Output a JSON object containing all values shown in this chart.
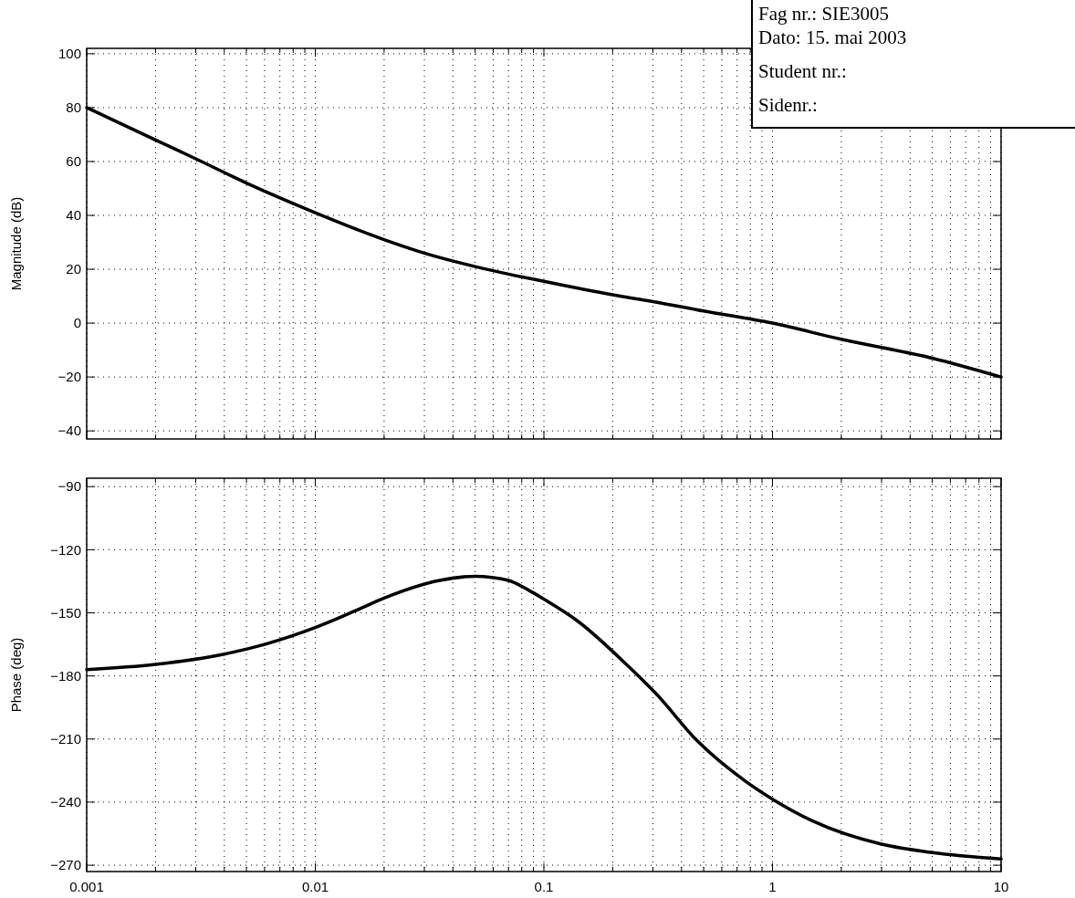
{
  "chart_data": [
    {
      "type": "line",
      "ylabel": "Magnitude (dB)",
      "log": "x",
      "grid": true,
      "tick_labels": "y",
      "line_style": "solid",
      "xlim": [
        0.001,
        10
      ],
      "ylim": [
        -43,
        102
      ],
      "xticks": [
        0.001,
        {
          "value": 0.002,
          "label": null
        },
        {
          "value": 0.003,
          "label": null
        },
        {
          "value": 0.004,
          "label": null
        },
        {
          "value": 0.005,
          "label": null
        },
        {
          "value": 0.006,
          "label": null
        },
        {
          "value": 0.007,
          "label": null
        },
        {
          "value": 0.008,
          "label": null
        },
        {
          "value": 0.009,
          "label": null
        },
        0.01,
        {
          "value": 0.02,
          "label": null
        },
        {
          "value": 0.03,
          "label": null
        },
        {
          "value": 0.04,
          "label": null
        },
        {
          "value": 0.05,
          "label": null
        },
        {
          "value": 0.06,
          "label": null
        },
        {
          "value": 0.07,
          "label": null
        },
        {
          "value": 0.08,
          "label": null
        },
        {
          "value": 0.09,
          "label": null
        },
        0.1,
        {
          "value": 0.2,
          "label": null
        },
        {
          "value": 0.3,
          "label": null
        },
        {
          "value": 0.4,
          "label": null
        },
        {
          "value": 0.5,
          "label": null
        },
        {
          "value": 0.6,
          "label": null
        },
        {
          "value": 0.7,
          "label": null
        },
        {
          "value": 0.8,
          "label": null
        },
        {
          "value": 0.9,
          "label": null
        },
        1,
        {
          "value": 2,
          "label": null
        },
        {
          "value": 3,
          "label": null
        },
        {
          "value": 4,
          "label": null
        },
        {
          "value": 5,
          "label": null
        },
        {
          "value": 6,
          "label": null
        },
        {
          "value": 7,
          "label": null
        },
        {
          "value": 8,
          "label": null
        },
        {
          "value": 9,
          "label": null
        },
        10
      ],
      "yticks": [
        -40,
        -20,
        0,
        20,
        40,
        60,
        80,
        100
      ],
      "annotations": [
        "Fag nr.: SIE3005",
        "Dato: 15. mai 2003",
        "Student nr.:",
        "Sidenr.:"
      ],
      "x": [
        0.001,
        0.002,
        0.003,
        0.005,
        0.01,
        0.02,
        0.03,
        0.05,
        0.1,
        0.2,
        0.3,
        0.5,
        1,
        2,
        5,
        10
      ],
      "series": [
        {
          "color": "#000000",
          "values": [
            80,
            68,
            61,
            52,
            41,
            31,
            26,
            21,
            15.5,
            10.5,
            8,
            4.5,
            0,
            -6,
            -13,
            -20
          ]
        }
      ]
    },
    {
      "type": "line",
      "ylabel": "Phase (deg)",
      "log": "x",
      "grid": true,
      "line_style": "solid",
      "xlim": [
        0.001,
        10
      ],
      "ylim": [
        -273,
        -86
      ],
      "xticks": [
        0.001,
        {
          "value": 0.002,
          "label": null
        },
        {
          "value": 0.003,
          "label": null
        },
        {
          "value": 0.004,
          "label": null
        },
        {
          "value": 0.005,
          "label": null
        },
        {
          "value": 0.006,
          "label": null
        },
        {
          "value": 0.007,
          "label": null
        },
        {
          "value": 0.008,
          "label": null
        },
        {
          "value": 0.009,
          "label": null
        },
        0.01,
        {
          "value": 0.02,
          "label": null
        },
        {
          "value": 0.03,
          "label": null
        },
        {
          "value": 0.04,
          "label": null
        },
        {
          "value": 0.05,
          "label": null
        },
        {
          "value": 0.06,
          "label": null
        },
        {
          "value": 0.07,
          "label": null
        },
        {
          "value": 0.08,
          "label": null
        },
        {
          "value": 0.09,
          "label": null
        },
        0.1,
        {
          "value": 0.2,
          "label": null
        },
        {
          "value": 0.3,
          "label": null
        },
        {
          "value": 0.4,
          "label": null
        },
        {
          "value": 0.5,
          "label": null
        },
        {
          "value": 0.6,
          "label": null
        },
        {
          "value": 0.7,
          "label": null
        },
        {
          "value": 0.8,
          "label": null
        },
        {
          "value": 0.9,
          "label": null
        },
        1,
        {
          "value": 2,
          "label": null
        },
        {
          "value": 3,
          "label": null
        },
        {
          "value": 4,
          "label": null
        },
        {
          "value": 5,
          "label": null
        },
        {
          "value": 6,
          "label": null
        },
        {
          "value": 7,
          "label": null
        },
        {
          "value": 8,
          "label": null
        },
        {
          "value": 9,
          "label": null
        },
        10
      ],
      "yticks": [
        {
          "value": -270,
          "label": "−270"
        },
        {
          "value": -240,
          "label": "−240"
        },
        {
          "value": -210,
          "label": "−210"
        },
        {
          "value": -180,
          "label": "−180"
        },
        {
          "value": -150,
          "label": "−150"
        },
        {
          "value": -120,
          "label": "−120"
        },
        {
          "value": -90,
          "label": "−90"
        }
      ],
      "x": [
        0.001,
        0.002,
        0.004,
        0.006,
        0.01,
        0.015,
        0.02,
        0.035,
        0.05,
        0.07,
        0.085,
        0.1,
        0.14,
        0.23,
        0.31,
        0.47,
        0.76,
        1,
        1.5,
        3,
        5,
        10
      ],
      "series": [
        {
          "color": "#000000",
          "values": [
            -177,
            -174.5,
            -169.6,
            -165,
            -157,
            -149,
            -143,
            -134.6,
            -132.6,
            -134.6,
            -139,
            -143.5,
            -153.8,
            -174.6,
            -188.5,
            -211,
            -230,
            -238.6,
            -249,
            -260,
            -264,
            -267
          ]
        }
      ]
    }
  ]
}
